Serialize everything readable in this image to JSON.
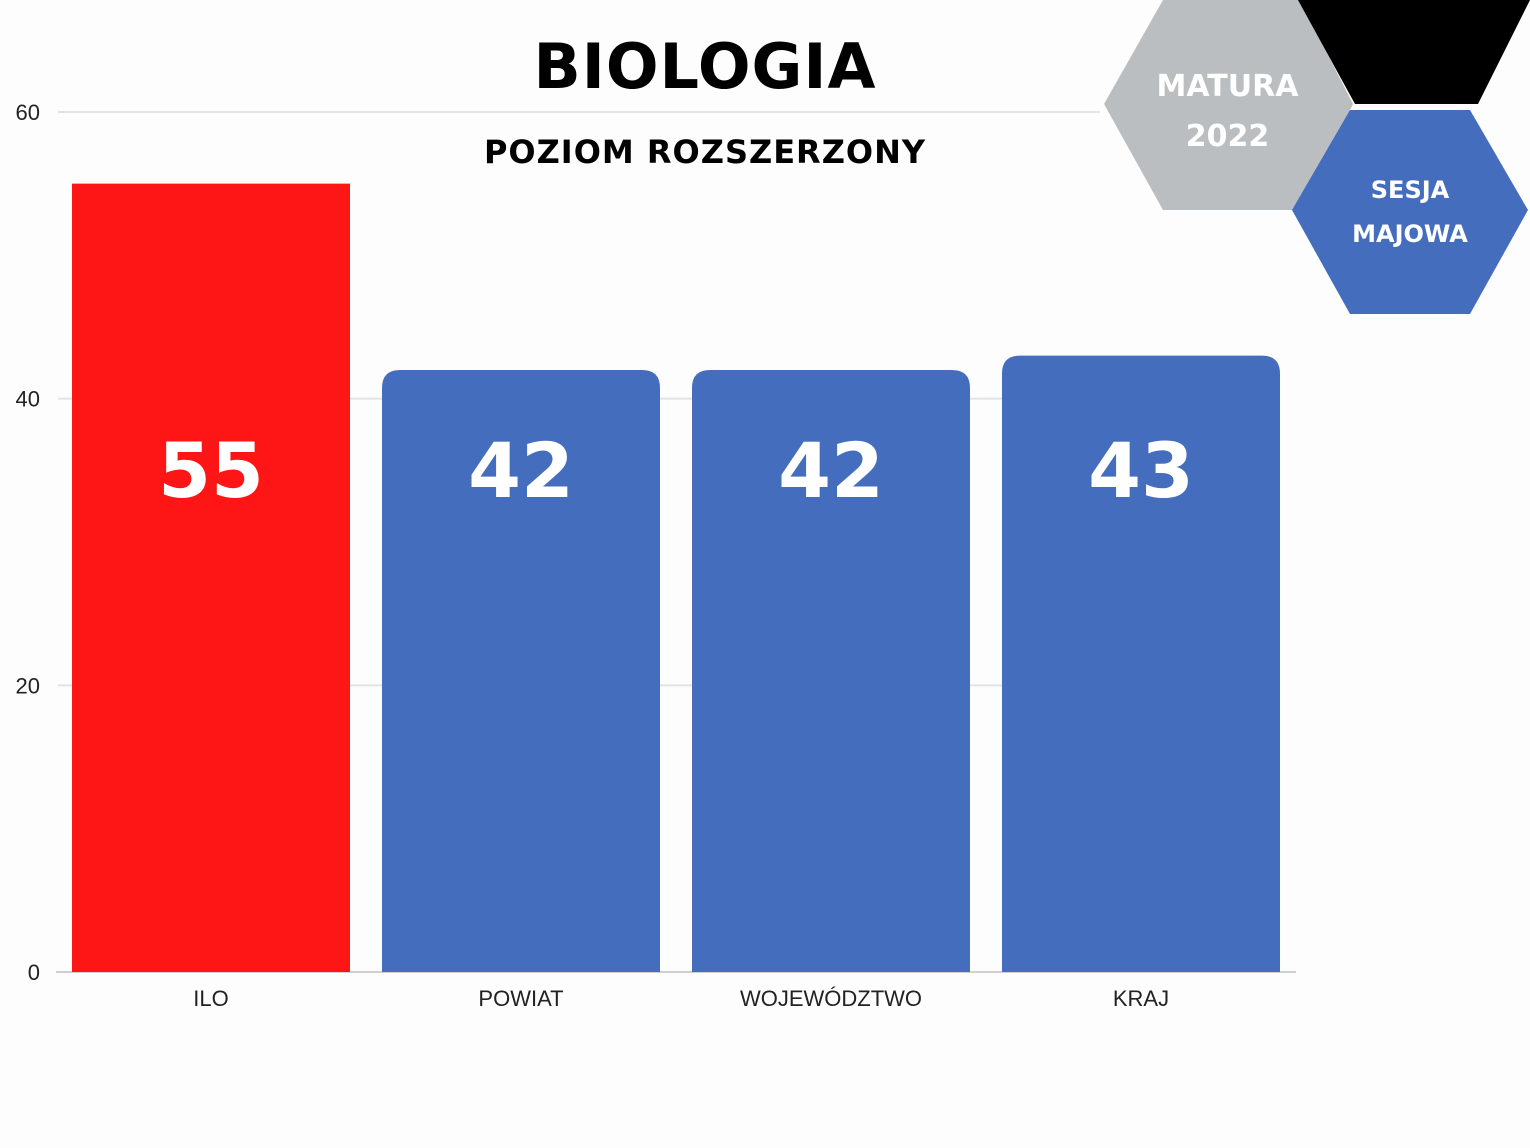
{
  "title": "BIOLOGIA",
  "subtitle": "POZIOM ROZSZERZONY",
  "badges": {
    "matura_line1": "MATURA",
    "matura_line2": "2022",
    "sesja_line1": "SESJA",
    "sesja_line2": "MAJOWA"
  },
  "colors": {
    "highlight": "#fe1616",
    "bar": "#446ebd",
    "hex_gray": "#bbbec0",
    "hex_black": "#000000",
    "hex_blue": "#446ebd",
    "grid": "#e3e3e3"
  },
  "chart_data": {
    "type": "bar",
    "categories": [
      "ILO",
      "POWIAT",
      "WOJEWÓDZTWO",
      "KRAJ"
    ],
    "values": [
      55,
      42,
      42,
      43
    ],
    "data_labels": [
      "55",
      "42",
      "42",
      "43"
    ],
    "highlight_index": 0,
    "title": "BIOLOGIA",
    "subtitle": "POZIOM ROZSZERZONY",
    "xlabel": "",
    "ylabel": "",
    "ylim": [
      0,
      60
    ],
    "yticks": [
      0,
      20,
      40,
      60
    ],
    "grid": true,
    "legend": "none"
  }
}
